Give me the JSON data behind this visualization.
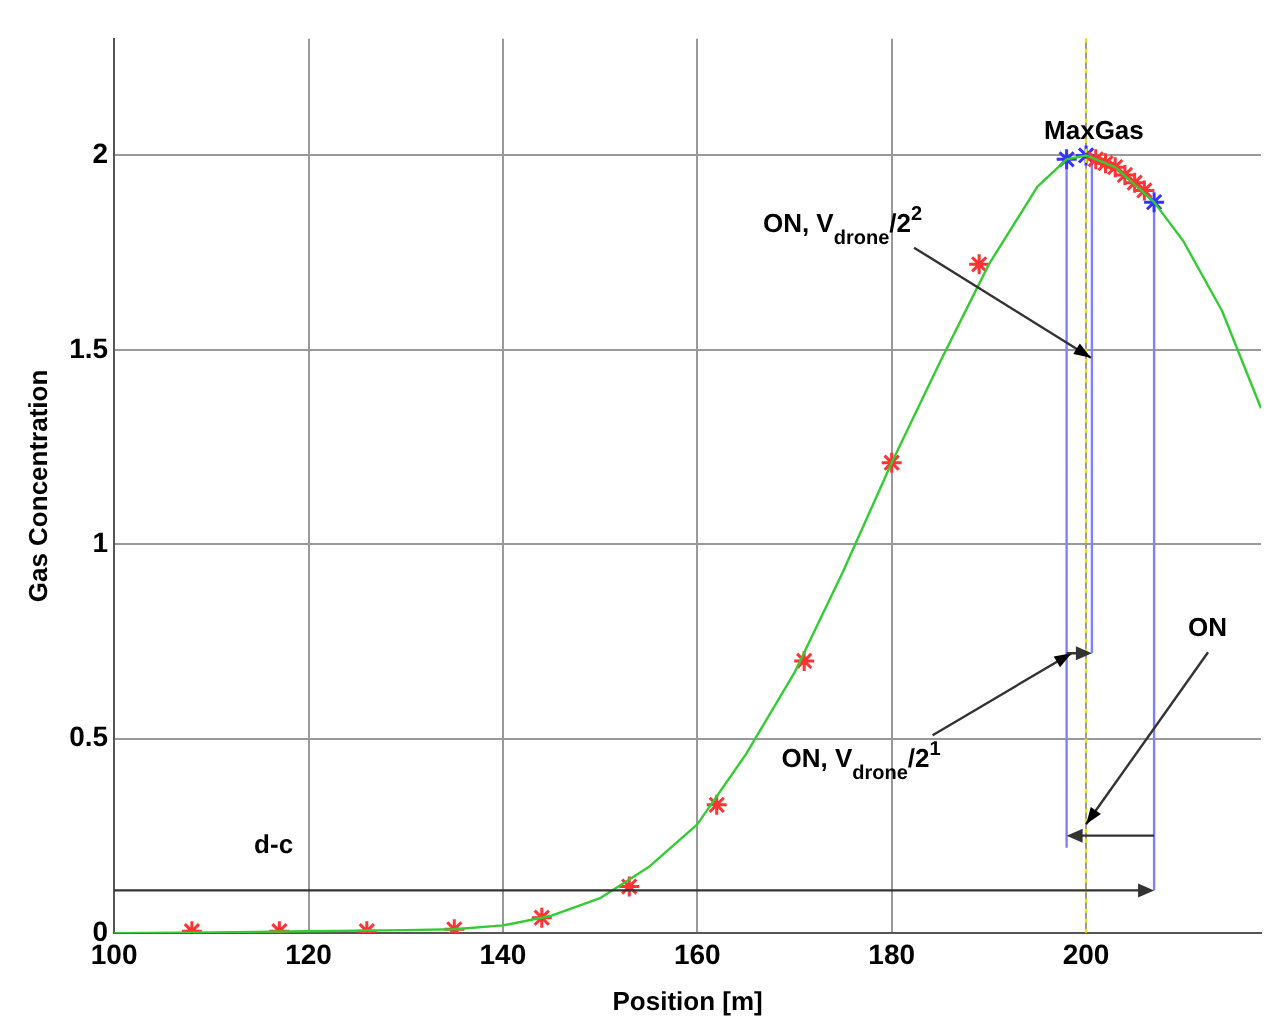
{
  "chart_data": {
    "type": "line",
    "xlabel": "Position [m]",
    "ylabel": "Gas Concentration",
    "xlim": [
      100,
      218
    ],
    "xticks": [
      100,
      120,
      140,
      160,
      180,
      200
    ],
    "ylim": [
      0,
      2.3
    ],
    "yticks": [
      0,
      0.5,
      1,
      1.5,
      2
    ],
    "grid": true,
    "series": [
      {
        "color": "#33cc33",
        "marker": "none",
        "x": [
          100,
          110,
          120,
          130,
          135,
          140,
          145,
          150,
          155,
          160,
          165,
          170,
          175,
          180,
          185,
          190,
          195,
          198,
          200,
          203,
          207,
          210,
          214,
          218
        ],
        "values": [
          0,
          0.002,
          0.005,
          0.008,
          0.01,
          0.02,
          0.045,
          0.09,
          0.17,
          0.28,
          0.46,
          0.67,
          0.93,
          1.21,
          1.47,
          1.72,
          1.92,
          1.99,
          2.0,
          1.97,
          1.88,
          1.78,
          1.6,
          1.35
        ]
      },
      {
        "type": "scatter",
        "color": "#ff3333",
        "marker": "cross",
        "x": [
          108,
          117,
          126,
          135,
          144,
          153,
          162,
          171,
          180,
          189,
          201,
          202,
          203,
          204,
          205,
          206
        ],
        "values": [
          0.005,
          0.005,
          0.005,
          0.01,
          0.04,
          0.12,
          0.33,
          0.7,
          1.21,
          1.72,
          1.99,
          1.98,
          1.97,
          1.95,
          1.93,
          1.91
        ]
      },
      {
        "type": "scatter",
        "color": "#3333ff",
        "marker": "cross",
        "x": [
          198,
          200,
          207
        ],
        "values": [
          1.99,
          2.0,
          1.88
        ]
      },
      {
        "color": "#8080ff",
        "marker": "none",
        "x": [
          198,
          198
        ],
        "values": [
          0.22,
          1.99
        ]
      },
      {
        "color": "#8080ff",
        "marker": "none",
        "x": [
          200.6,
          200.6
        ],
        "values": [
          0.72,
          1.99
        ]
      },
      {
        "color": "#8080ff",
        "marker": "none",
        "x": [
          207,
          207
        ],
        "values": [
          0.11,
          1.88
        ]
      }
    ],
    "ref_lines": [
      {
        "axis": "x",
        "value": 200,
        "color": "#e6e600",
        "line_style": "dotted"
      }
    ],
    "annotations": [
      {
        "text": "MaxGas",
        "x": 200,
        "y": 2
      },
      {
        "text": "ON, V$_{drone}$/2$^{2}$",
        "x": 200.5,
        "y": 1.48
      },
      {
        "text": "ON, V$_{drone}$/2$^{1}$",
        "x": 198.5,
        "y": 0.72
      },
      {
        "text": "ON",
        "x": 200,
        "y": 0.28
      },
      "d-c"
    ]
  }
}
